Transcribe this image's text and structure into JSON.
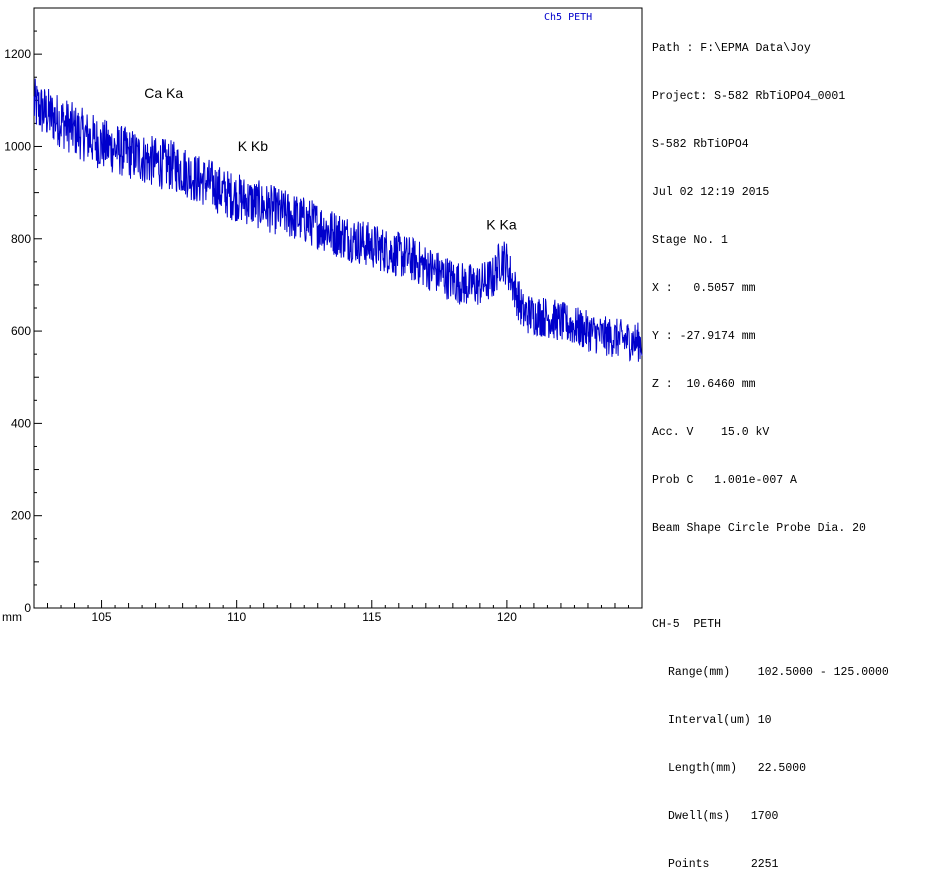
{
  "channel_label": "Ch5 PETH",
  "info": {
    "path": "Path : F:\\EPMA Data\\Joy",
    "project": "Project: S-582 RbTiOPO4_0001",
    "sample": "S-582 RbTiOPO4",
    "date": "Jul 02 12:19 2015",
    "stage": "Stage No. 1",
    "x": "X :   0.5057 mm",
    "y": "Y : -27.9174 mm",
    "z": "Z :  10.6460 mm",
    "acc_v": "Acc. V    15.0 kV",
    "probe_c": "Prob C   1.001e-007 A",
    "beam": "Beam Shape Circle Probe Dia. 20",
    "channel_header": "CH-5  PETH",
    "range": "Range(mm)    102.5000 - 125.0000",
    "interval": "Interval(um) 10",
    "length": "Length(mm)   22.5000",
    "dwell": "Dwell(ms)   1700",
    "points": "Points      2251"
  },
  "chart_data": {
    "type": "line",
    "xlabel": "mm",
    "ylabel": "",
    "xlim": [
      102.5,
      125.0
    ],
    "ylim": [
      0,
      1300
    ],
    "x_ticks": [
      105,
      110,
      115,
      120
    ],
    "y_ticks": [
      0,
      200,
      400,
      600,
      800,
      1000,
      1200
    ],
    "series_color": "#0000cc",
    "series": [
      {
        "x": [
          102.5,
          103.0,
          103.5,
          104.0,
          104.5,
          105.0,
          105.5,
          106.0,
          106.5,
          107.0,
          107.5,
          108.0,
          108.5,
          109.0,
          109.5,
          110.0,
          110.5,
          111.0,
          111.5,
          112.0,
          112.5,
          113.0,
          113.5,
          114.0,
          114.5,
          115.0,
          115.5,
          116.0,
          116.5,
          117.0,
          117.5,
          118.0,
          118.5,
          119.0,
          119.5,
          119.8,
          120.0,
          120.3,
          120.6,
          121.0,
          121.5,
          122.0,
          122.5,
          123.0,
          123.5,
          124.0,
          124.5,
          125.0
        ],
        "y": [
          1090,
          1070,
          1055,
          1035,
          1020,
          1005,
          995,
          985,
          975,
          965,
          960,
          950,
          930,
          920,
          900,
          890,
          880,
          870,
          860,
          850,
          840,
          830,
          815,
          805,
          795,
          785,
          775,
          765,
          755,
          740,
          725,
          710,
          700,
          700,
          715,
          760,
          745,
          690,
          640,
          635,
          630,
          620,
          610,
          600,
          590,
          585,
          580,
          575
        ]
      }
    ],
    "annotations": [
      {
        "text": "Ca Ka",
        "x": 107.3,
        "y": 1105
      },
      {
        "text": "K Kb",
        "x": 110.6,
        "y": 990
      },
      {
        "text": "K Ka",
        "x": 119.8,
        "y": 820
      }
    ]
  }
}
